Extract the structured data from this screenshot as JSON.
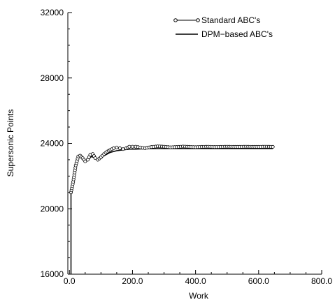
{
  "chart_data": {
    "type": "line",
    "title": "",
    "xlabel": "Work",
    "ylabel": "Supersonic Points",
    "xlim": [
      -5,
      800
    ],
    "ylim": [
      16000,
      32000
    ],
    "x_ticks": [
      0,
      200,
      400,
      600,
      800
    ],
    "x_tick_labels": [
      "0.0",
      "200.0",
      "400.0",
      "600.0",
      "800.0"
    ],
    "y_ticks": [
      16000,
      20000,
      24000,
      28000,
      32000
    ],
    "y_tick_labels": [
      "16000",
      "20000",
      "24000",
      "28000",
      "32000"
    ],
    "grid": false,
    "legend_position": "top-right",
    "series": [
      {
        "name": "Standard ABC's",
        "style": "line-with-open-circles",
        "color": "#000000",
        "x": [
          5,
          12,
          20,
          28,
          34,
          42,
          50,
          58,
          66,
          74,
          82,
          90,
          100,
          110,
          120,
          130,
          140,
          150,
          160,
          170,
          180,
          190,
          200,
          210,
          225,
          240,
          260,
          280,
          300,
          320,
          340,
          360,
          380,
          400,
          420,
          440,
          460,
          480,
          500,
          520,
          540,
          560,
          580,
          600,
          620,
          645
        ],
        "y": [
          21000,
          21650,
          22650,
          23200,
          23250,
          23100,
          22900,
          23000,
          23300,
          23350,
          23100,
          23000,
          23150,
          23350,
          23500,
          23600,
          23700,
          23750,
          23700,
          23650,
          23700,
          23800,
          23800,
          23800,
          23750,
          23700,
          23780,
          23820,
          23800,
          23760,
          23780,
          23810,
          23790,
          23770,
          23790,
          23800,
          23780,
          23790,
          23800,
          23790,
          23790,
          23800,
          23790,
          23790,
          23800,
          23790
        ]
      },
      {
        "name": "DPM−based ABC's",
        "style": "line",
        "color": "#000000",
        "x": [
          5,
          12,
          20,
          28,
          34,
          42,
          50,
          60,
          70,
          80,
          90,
          100,
          115,
          130,
          150,
          170,
          190,
          210,
          240,
          280,
          320,
          400,
          500,
          645
        ],
        "y": [
          21000,
          21650,
          22600,
          23150,
          23200,
          23050,
          22900,
          23000,
          23200,
          23100,
          23050,
          23100,
          23300,
          23450,
          23550,
          23600,
          23650,
          23650,
          23670,
          23680,
          23680,
          23680,
          23680,
          23680
        ]
      }
    ],
    "vertical_drop": {
      "x": 5,
      "y_from": 21000,
      "y_to": 16000
    }
  }
}
